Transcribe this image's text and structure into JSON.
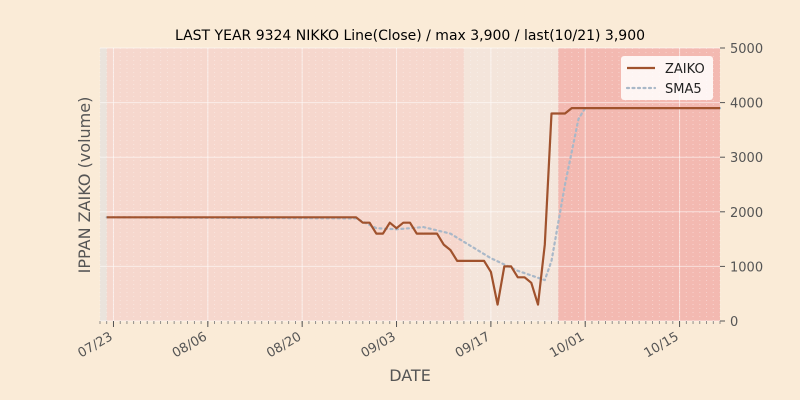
{
  "chart_data": {
    "type": "line",
    "title": "LAST YEAR 9324 NIKKO Line(Close) / max 3,900 / last(10/21) 3,900",
    "xlabel": "DATE",
    "ylabel": "IPPAN ZAIKO (volume)",
    "ylim": [
      0,
      5000
    ],
    "yticks": [
      0,
      1000,
      2000,
      3000,
      4000,
      5000
    ],
    "y_axis_side": "right",
    "xlim": [
      "07/21",
      "10/21"
    ],
    "xticks": [
      "07/23",
      "08/06",
      "08/20",
      "09/03",
      "09/17",
      "10/01",
      "10/15"
    ],
    "grid": true,
    "legend": "top-right",
    "background_bands": [
      {
        "from": "07/22",
        "to": "09/13",
        "color": "#f6d7cd"
      },
      {
        "from": "09/13",
        "to": "09/27",
        "color": "#f4e5db"
      },
      {
        "from": "09/27",
        "to": "10/21",
        "color": "#f3b9b1"
      }
    ],
    "series": [
      {
        "name": "ZAIKO",
        "color": "#a0522d",
        "style": "solid",
        "x": [
          "07/22",
          "08/28",
          "08/29",
          "08/30",
          "08/31",
          "09/01",
          "09/02",
          "09/03",
          "09/04",
          "09/05",
          "09/06",
          "09/07",
          "09/08",
          "09/09",
          "09/10",
          "09/11",
          "09/12",
          "09/13",
          "09/14",
          "09/15",
          "09/16",
          "09/17",
          "09/18",
          "09/19",
          "09/20",
          "09/21",
          "09/22",
          "09/23",
          "09/24",
          "09/25",
          "09/26",
          "09/27",
          "09/28",
          "09/29",
          "09/30",
          "10/01",
          "10/21"
        ],
        "values": [
          1900,
          1900,
          1800,
          1800,
          1600,
          1600,
          1800,
          1700,
          1800,
          1800,
          1600,
          1600,
          1600,
          1600,
          1400,
          1300,
          1100,
          1100,
          1100,
          1100,
          1100,
          900,
          300,
          1000,
          1000,
          800,
          800,
          700,
          300,
          1400,
          3800,
          3800,
          3800,
          3900,
          3900,
          3900,
          3900
        ]
      },
      {
        "name": "SMA5",
        "color": "#a9b8c8",
        "style": "dotted",
        "x": [
          "07/22",
          "08/28",
          "08/31",
          "09/03",
          "09/07",
          "09/11",
          "09/13",
          "09/17",
          "09/21",
          "09/25",
          "09/26",
          "09/28",
          "09/30",
          "10/01",
          "10/21"
        ],
        "values": [
          1900,
          1880,
          1700,
          1680,
          1720,
          1600,
          1450,
          1150,
          920,
          750,
          1100,
          2500,
          3700,
          3900,
          3900
        ]
      }
    ]
  }
}
